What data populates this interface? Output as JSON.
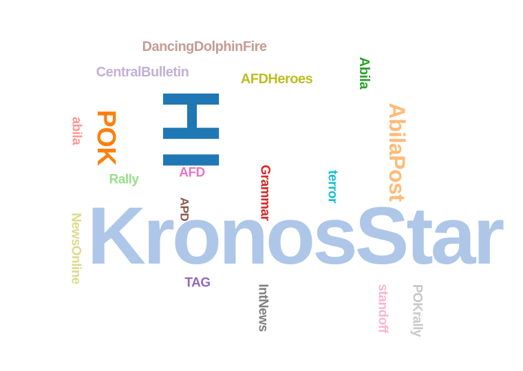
{
  "words": [
    {
      "text": "KronosStar",
      "color": "#aec7e8"
    },
    {
      "text": "HI",
      "color": "#1f77b4"
    },
    {
      "text": "POK",
      "color": "#ff7f0e"
    },
    {
      "text": "AbilaPost",
      "color": "#ffbb78"
    },
    {
      "text": "DancingDolphinFire",
      "color": "#c49c94"
    },
    {
      "text": "CentralBulletin",
      "color": "#c5b0d5"
    },
    {
      "text": "AFDHeroes",
      "color": "#bcbd22"
    },
    {
      "text": "Abila",
      "color": "#2ca02c"
    },
    {
      "text": "abila",
      "color": "#ff9896"
    },
    {
      "text": "Rally",
      "color": "#98df8a"
    },
    {
      "text": "AFD",
      "color": "#e377c2"
    },
    {
      "text": "Grammar",
      "color": "#d62728"
    },
    {
      "text": "terror",
      "color": "#17becf"
    },
    {
      "text": "APD",
      "color": "#8c564b"
    },
    {
      "text": "NewsOnline",
      "color": "#dbdb8d"
    },
    {
      "text": "TAG",
      "color": "#9467bd"
    },
    {
      "text": "IntNews",
      "color": "#7f7f7f"
    },
    {
      "text": "standoff",
      "color": "#f7b6d2"
    },
    {
      "text": "POKrally",
      "color": "#c7c7c7"
    }
  ]
}
